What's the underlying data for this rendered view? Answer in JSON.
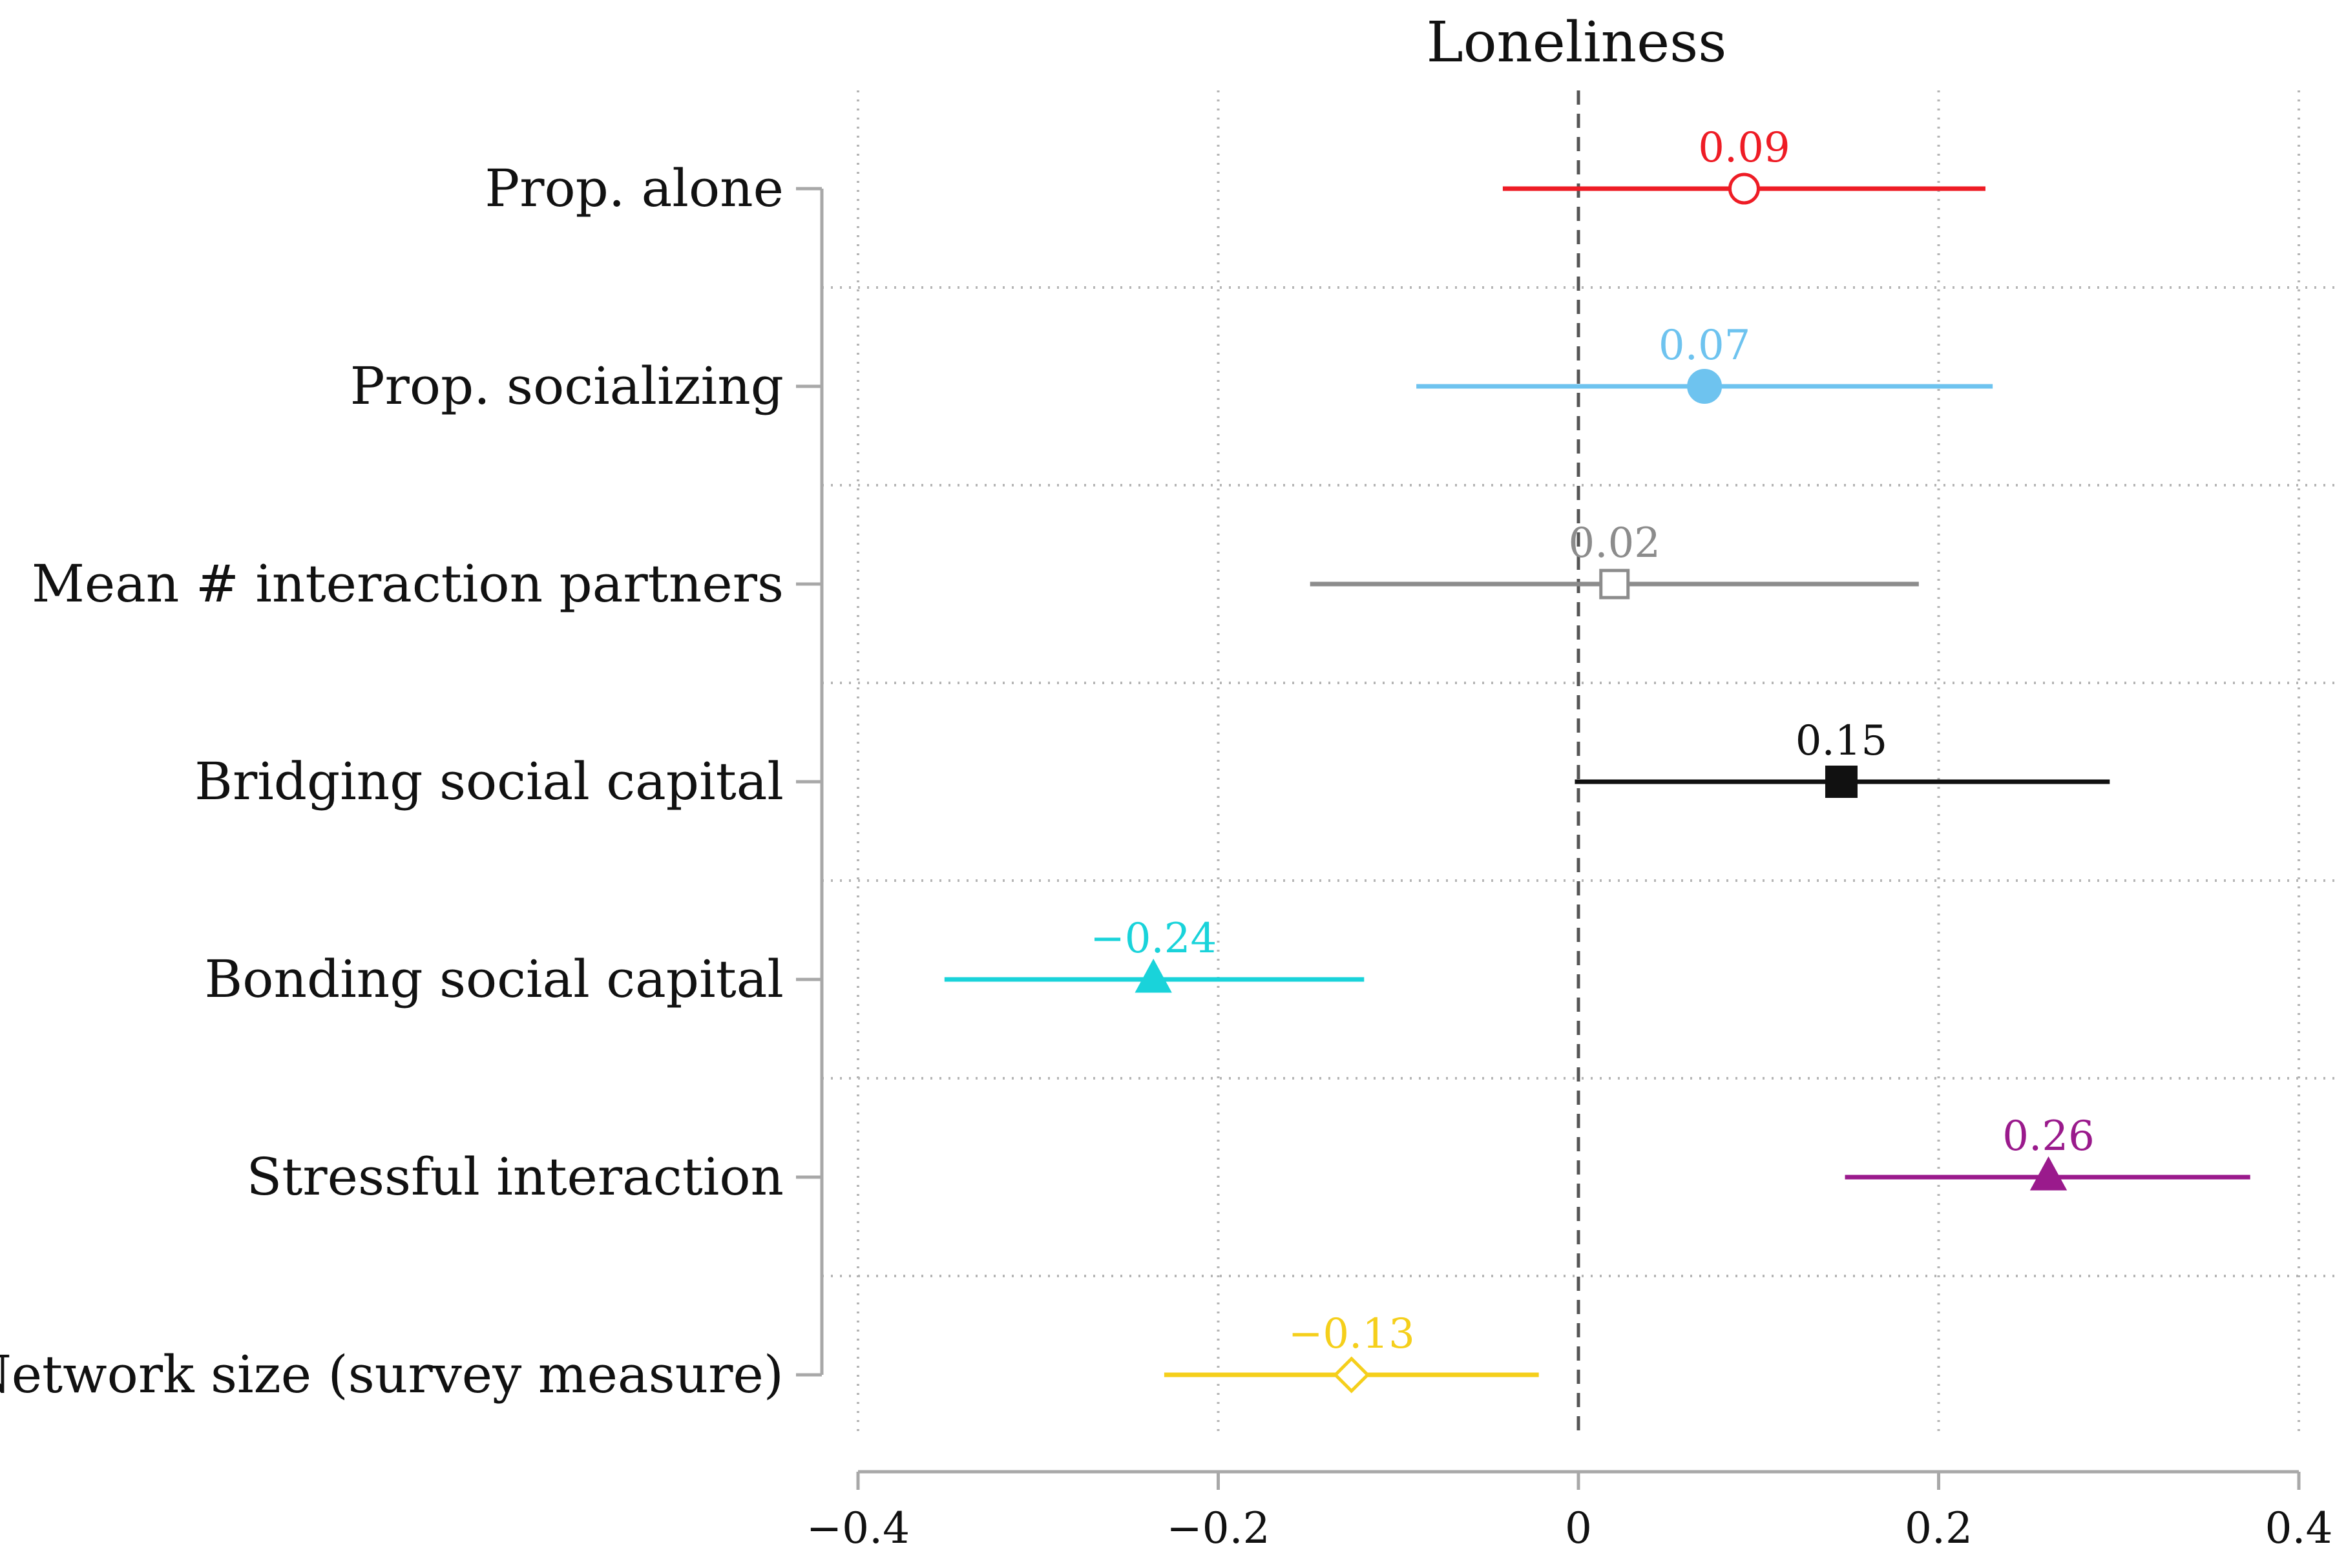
{
  "chart_data": {
    "type": "forest",
    "title": "Loneliness",
    "xlabel": "",
    "ylabel": "",
    "xlim": [
      -0.4,
      0.4
    ],
    "x_ticks": [
      -0.4,
      -0.2,
      0,
      0.2,
      0.4
    ],
    "x_tick_labels": [
      "−0.4",
      "−0.2",
      "0",
      "0.2",
      "0.4"
    ],
    "reference_line": 0,
    "grid": "dotted",
    "series": [
      {
        "name": "Prop. alone",
        "estimate": 0.092,
        "lower": -0.042,
        "upper": 0.226,
        "label": "0.09",
        "color": "#ee1c25",
        "marker": "open-circle"
      },
      {
        "name": "Prop. socializing",
        "estimate": 0.07,
        "lower": -0.09,
        "upper": 0.23,
        "label": "0.07",
        "color": "#6ec3ef",
        "marker": "filled-circle"
      },
      {
        "name": "Mean # interaction partners",
        "estimate": 0.02,
        "lower": -0.149,
        "upper": 0.189,
        "label": "0.02",
        "color": "#8c8c8c",
        "marker": "open-square"
      },
      {
        "name": "Bridging social capital",
        "estimate": 0.146,
        "lower": -0.002,
        "upper": 0.295,
        "label": "0.15",
        "color": "#111111",
        "marker": "filled-square"
      },
      {
        "name": "Bonding social capital",
        "estimate": -0.236,
        "lower": -0.352,
        "upper": -0.119,
        "label": "−0.24",
        "color": "#19d3da",
        "marker": "filled-triangle"
      },
      {
        "name": "Stressful interaction",
        "estimate": 0.261,
        "lower": 0.148,
        "upper": 0.373,
        "label": "0.26",
        "color": "#9a1a8c",
        "marker": "filled-triangle"
      },
      {
        "name": "Network size (survey measure)",
        "estimate": -0.126,
        "lower": -0.23,
        "upper": -0.022,
        "label": "−0.13",
        "color": "#f5cf1b",
        "marker": "open-diamond"
      }
    ]
  }
}
